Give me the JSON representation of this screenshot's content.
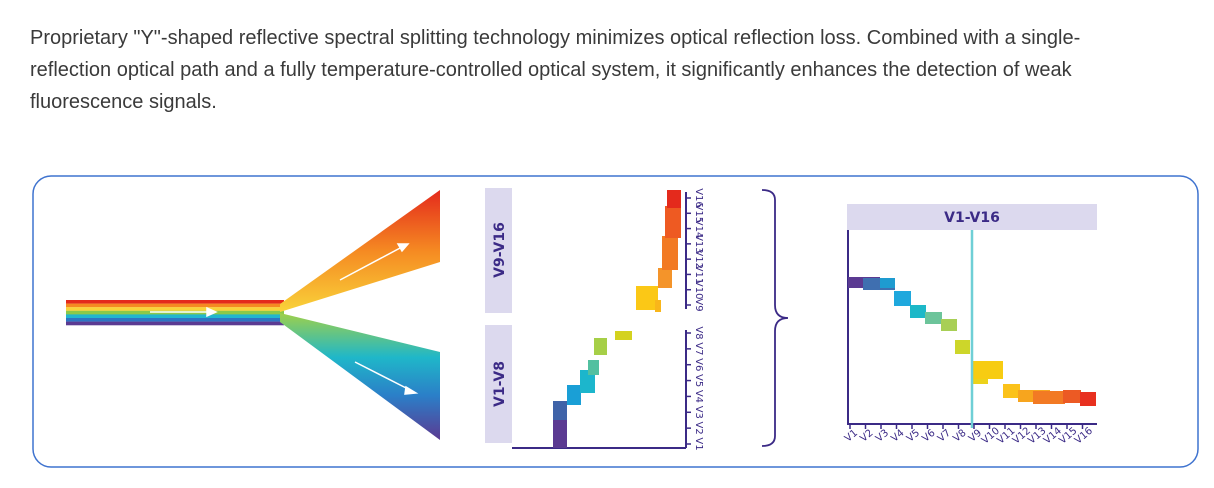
{
  "intro_text": "Proprietary \"Y\"-shaped reflective spectral splitting technology minimizes optical reflection loss. Combined with a single-reflection optical path and a fully temperature-controlled optical system, it significantly enhances the detection of weak fluorescence signals.",
  "split_chart": {
    "upper_label": "V9-V16",
    "lower_label": "V1-V8",
    "upper_ticks": [
      "V9",
      "V10",
      "V11",
      "V12",
      "V13",
      "V14",
      "V15",
      "V16"
    ],
    "lower_ticks": [
      "V1",
      "V2",
      "V3",
      "V4",
      "V5",
      "V6",
      "V7",
      "V8"
    ]
  },
  "combined_chart": {
    "label": "V1-V16",
    "ticks": [
      "V1",
      "V2",
      "V3",
      "V4",
      "V5",
      "V6",
      "V7",
      "V8",
      "V9",
      "V10",
      "V11",
      "V12",
      "V13",
      "V14",
      "V15",
      "V16"
    ]
  },
  "colors": {
    "frame": "#3f73cf",
    "axis": "#3b2a86",
    "label_bg": "#dcd9ee",
    "divider": "#6fcfd6"
  }
}
